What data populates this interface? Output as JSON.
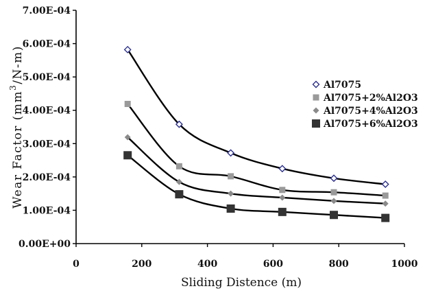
{
  "chart_data": {
    "type": "scatter",
    "xlabel": "Sliding Distence (m)",
    "ylabel_parts": {
      "pre": "Wear Factor (mm",
      "sup": "3",
      "post": "/N-m)"
    },
    "xlim": [
      0,
      1000
    ],
    "ylim": [
      0,
      0.0007
    ],
    "xticks": [
      0,
      200,
      400,
      600,
      800,
      1000
    ],
    "xtick_labels": [
      "0",
      "200",
      "400",
      "600",
      "800",
      "1000"
    ],
    "yticks": [
      0,
      0.0001,
      0.0002,
      0.0003,
      0.0004,
      0.0005,
      0.0006,
      0.0007
    ],
    "ytick_labels": [
      "0.00E+00",
      "1.00E-04",
      "2.00E-04",
      "3.00E-04",
      "4.00E-04",
      "5.00E-04",
      "6.00E-04",
      "7.00E-04"
    ],
    "grid": false,
    "legend_position": "right",
    "x": [
      157,
      314,
      471,
      628,
      785,
      942
    ],
    "series": [
      {
        "name": "Al7075",
        "marker": "diamond-open",
        "color": "#2b2f8f",
        "values": [
          0.000582,
          0.000358,
          0.000272,
          0.000225,
          0.000196,
          0.000178
        ]
      },
      {
        "name": "Al7075+2%Al2O3",
        "marker": "square-small",
        "color": "#9a9a9a",
        "values": [
          0.000419,
          0.000232,
          0.000202,
          0.000161,
          0.000154,
          0.000144
        ]
      },
      {
        "name": "Al7075+4%Al2O3",
        "marker": "diamond-filled",
        "color": "#8a8a8a",
        "values": [
          0.000319,
          0.000185,
          0.00015,
          0.000138,
          0.000128,
          0.00012
        ]
      },
      {
        "name": "Al7075+6%Al2O3",
        "marker": "square-large",
        "color": "#333333",
        "values": [
          0.000265,
          0.000148,
          0.000105,
          9.5e-05,
          8.6e-05,
          7.7e-05
        ]
      }
    ]
  }
}
